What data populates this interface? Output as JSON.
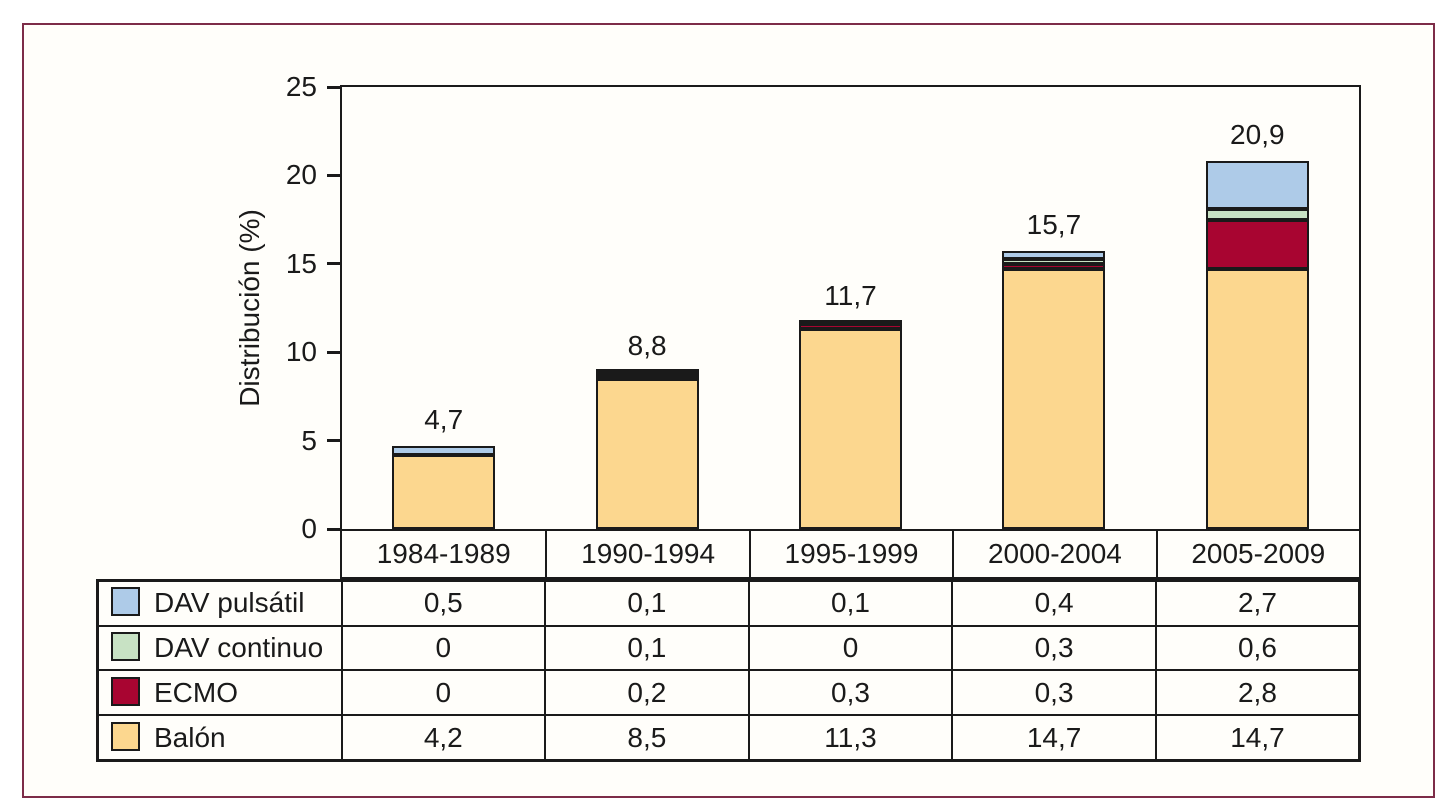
{
  "figure": {
    "frame_color": "#7d2c48",
    "line_color": "#1a1a1a",
    "background": "#fffefa"
  },
  "chart_data": {
    "type": "bar",
    "stacked": true,
    "title": "",
    "xlabel": "",
    "ylabel": "Distribución (%)",
    "ylim": [
      0,
      25
    ],
    "yticks": [
      0,
      5,
      10,
      15,
      20,
      25
    ],
    "grid": false,
    "legend_position": "table-rows-left",
    "categories": [
      "1984-1989",
      "1990-1994",
      "1995-1999",
      "2000-2004",
      "2005-2009"
    ],
    "series": [
      {
        "name": "DAV pulsátil",
        "color": "#aecbe8",
        "values": [
          0.5,
          0.1,
          0.1,
          0.4,
          2.7
        ],
        "display": [
          "0,5",
          "0,1",
          "0,1",
          "0,4",
          "2,7"
        ]
      },
      {
        "name": "DAV continuo",
        "color": "#c8e2c4",
        "values": [
          0,
          0.1,
          0,
          0.3,
          0.6
        ],
        "display": [
          "0",
          "0,1",
          "0",
          "0,3",
          "0,6"
        ]
      },
      {
        "name": "ECMO",
        "color": "#a80531",
        "values": [
          0,
          0.2,
          0.3,
          0.3,
          2.8
        ],
        "display": [
          "0",
          "0,2",
          "0,3",
          "0,3",
          "2,8"
        ]
      },
      {
        "name": "Balón",
        "color": "#fcd78f",
        "values": [
          4.2,
          8.5,
          11.3,
          14.7,
          14.7
        ],
        "display": [
          "4,2",
          "8,5",
          "11,3",
          "14,7",
          "14,7"
        ]
      }
    ],
    "stack_order_bottom_to_top": [
      "Balón",
      "ECMO",
      "DAV continuo",
      "DAV pulsátil"
    ],
    "bar_total_labels": [
      "4,7",
      "8,8",
      "11,7",
      "15,7",
      "20,9"
    ]
  }
}
